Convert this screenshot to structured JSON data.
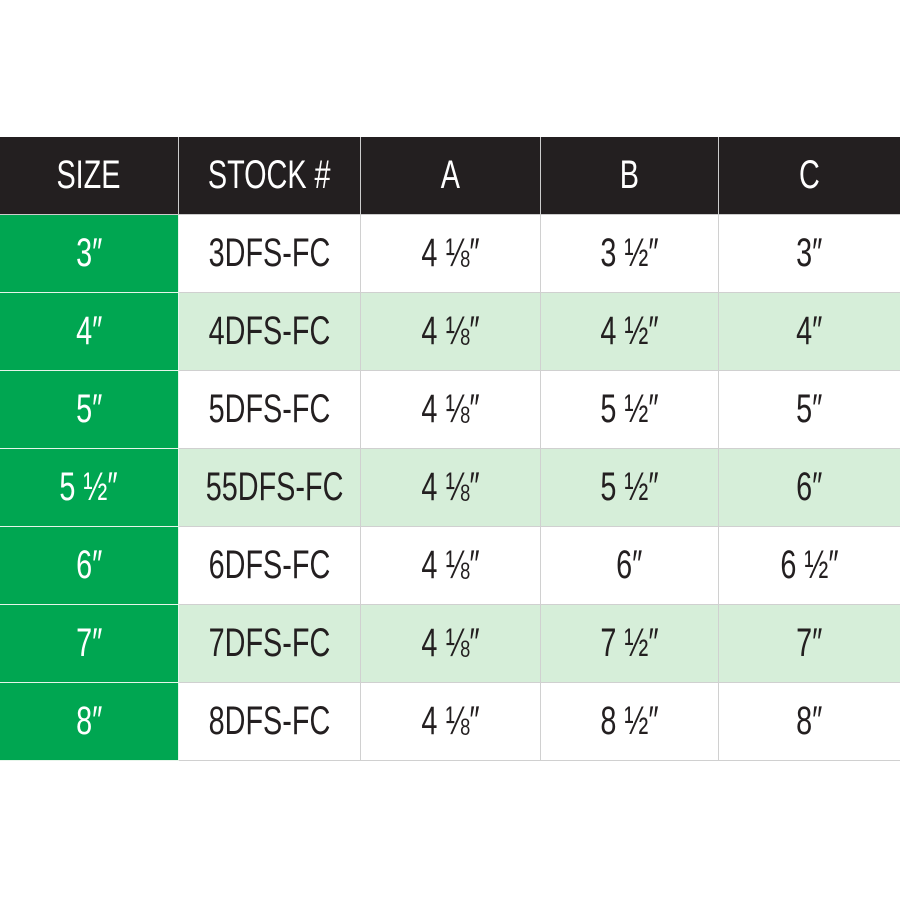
{
  "colors": {
    "header": "#231f20",
    "size_column": "#00a651",
    "alt_row": "#d6eed9"
  },
  "headers": [
    "SIZE",
    "STOCK #",
    "A",
    "B",
    "C"
  ],
  "rows": [
    [
      "3″",
      "3DFS-FC",
      "4 ⅛″",
      "3 ½″",
      "3″"
    ],
    [
      "4″",
      "4DFS-FC",
      "4 ⅛″",
      "4 ½″",
      "4″"
    ],
    [
      "5″",
      "5DFS-FC",
      "4 ⅛″",
      "5 ½″",
      "5″"
    ],
    [
      "5 ½″",
      "55DFS-FC",
      "4 ⅛″",
      "5 ½″",
      "6″"
    ],
    [
      "6″",
      "6DFS-FC",
      "4 ⅛″",
      "6″",
      "6 ½″"
    ],
    [
      "7″",
      "7DFS-FC",
      "4 ⅛″",
      "7 ½″",
      "7″"
    ],
    [
      "8″",
      "8DFS-FC",
      "4 ⅛″",
      "8 ½″",
      "8″"
    ]
  ]
}
